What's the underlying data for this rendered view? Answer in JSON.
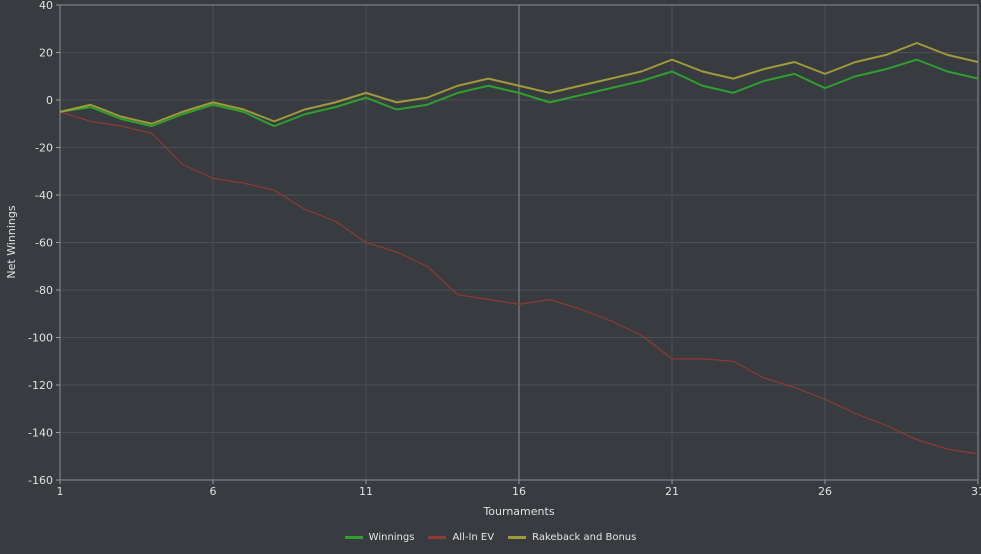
{
  "chart_data": {
    "type": "line",
    "xlabel": "Tournaments",
    "ylabel": "Net Winnings",
    "xlim": [
      1,
      31
    ],
    "ylim": [
      -160,
      40
    ],
    "x_ticks": [
      1,
      6,
      11,
      16,
      21,
      26,
      31
    ],
    "y_ticks": [
      40,
      20,
      0,
      -20,
      -40,
      -60,
      -80,
      -100,
      -120,
      -140,
      -160
    ],
    "grid": true,
    "legend_position": "bottom",
    "x": [
      1,
      2,
      3,
      4,
      5,
      6,
      7,
      8,
      9,
      10,
      11,
      12,
      13,
      14,
      15,
      16,
      17,
      18,
      19,
      20,
      21,
      22,
      23,
      24,
      25,
      26,
      27,
      28,
      29,
      30,
      31
    ],
    "series": [
      {
        "name": "Winnings",
        "color": "#2ea02e",
        "values": [
          -5,
          -3,
          -8,
          -11,
          -6,
          -2,
          -5,
          -11,
          -6,
          -3,
          1,
          -4,
          -2,
          3,
          6,
          3,
          -1,
          2,
          5,
          8,
          12,
          6,
          3,
          8,
          11,
          5,
          10,
          13,
          17,
          12,
          9
        ]
      },
      {
        "name": "All-In EV",
        "color": "#8e3a35",
        "values": [
          -5,
          -9,
          -11,
          -14,
          -27,
          -33,
          -35,
          -38,
          -46,
          -51,
          -60,
          -64,
          -70,
          -82,
          -84,
          -86,
          -84,
          -88,
          -93,
          -99,
          -109,
          -109,
          -110,
          -117,
          -121,
          -126,
          -132,
          -137,
          -143,
          -147,
          -149
        ]
      },
      {
        "name": "Rakeback and Bonus",
        "color": "#a09a3a",
        "values": [
          -5,
          -2,
          -7,
          -10,
          -5,
          -1,
          -4,
          -9,
          -4,
          -1,
          3,
          -1,
          1,
          6,
          9,
          6,
          3,
          6,
          9,
          12,
          17,
          12,
          9,
          13,
          16,
          11,
          16,
          19,
          24,
          19,
          16
        ]
      }
    ]
  }
}
